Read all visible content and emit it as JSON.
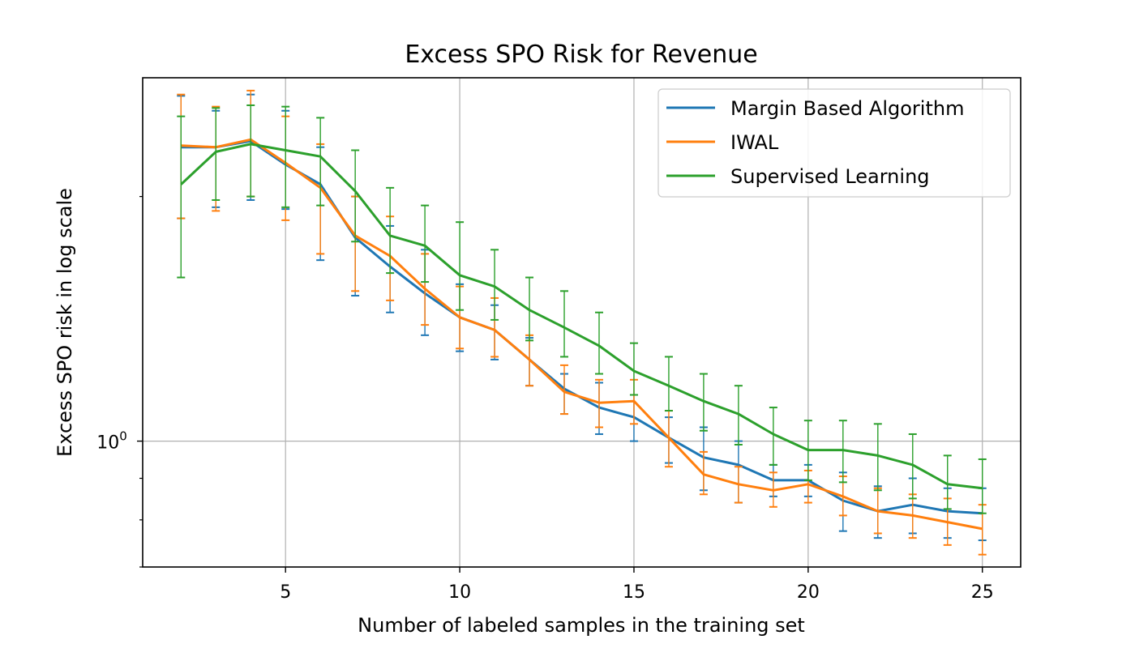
{
  "chart_data": {
    "type": "line",
    "title": "Excess SPO Risk for Revenue",
    "xlabel": "Number of labeled samples in the training set",
    "ylabel": "Excess SPO risk in log scale",
    "yscale": "log",
    "xlim": [
      0.9,
      26.1
    ],
    "ylim": [
      0.7,
      2.8
    ],
    "xticks": [
      5,
      10,
      15,
      20,
      25
    ],
    "xtick_labels": [
      "5",
      "10",
      "15",
      "20",
      "25"
    ],
    "ytick_major": [
      1.0
    ],
    "ytick_labels": [
      "10",
      "0"
    ],
    "ytick_minor": [
      0.7,
      0.8,
      0.9,
      2.0
    ],
    "grid": true,
    "legend_position": "top-right",
    "x": [
      2,
      3,
      4,
      5,
      6,
      7,
      8,
      9,
      10,
      11,
      12,
      13,
      14,
      15,
      16,
      17,
      18,
      19,
      20,
      21,
      22,
      23,
      24,
      25
    ],
    "series": [
      {
        "name": "Margin Based Algorithm",
        "color": "#1f77b4",
        "values": [
          2.3,
          2.3,
          2.34,
          2.19,
          2.07,
          1.78,
          1.64,
          1.52,
          1.42,
          1.37,
          1.26,
          1.16,
          1.1,
          1.07,
          1.01,
          0.955,
          0.935,
          0.895,
          0.895,
          0.845,
          0.82,
          0.835,
          0.82,
          0.815
        ],
        "err_low": [
          1.88,
          1.94,
          1.98,
          1.93,
          1.67,
          1.51,
          1.44,
          1.35,
          1.29,
          1.26,
          1.17,
          1.08,
          1.02,
          1.0,
          0.94,
          0.87,
          0.84,
          0.855,
          0.855,
          0.775,
          0.76,
          0.77,
          0.76,
          0.755
        ],
        "err_high": [
          2.66,
          2.55,
          2.67,
          2.55,
          2.3,
          2.0,
          1.84,
          1.72,
          1.56,
          1.47,
          1.34,
          1.21,
          1.18,
          1.14,
          1.07,
          1.04,
          1.0,
          0.935,
          0.935,
          0.915,
          0.88,
          0.9,
          0.875,
          0.875
        ]
      },
      {
        "name": "IWAL",
        "color": "#ff7f0e",
        "values": [
          2.31,
          2.3,
          2.35,
          2.2,
          2.05,
          1.79,
          1.69,
          1.54,
          1.42,
          1.37,
          1.26,
          1.15,
          1.115,
          1.12,
          1.01,
          0.91,
          0.885,
          0.87,
          0.885,
          0.855,
          0.82,
          0.81,
          0.795,
          0.78
        ],
        "err_low": [
          1.88,
          1.92,
          2.0,
          1.87,
          1.7,
          1.53,
          1.49,
          1.39,
          1.3,
          1.27,
          1.17,
          1.08,
          1.04,
          1.05,
          0.93,
          0.86,
          0.84,
          0.83,
          0.84,
          0.81,
          0.77,
          0.76,
          0.745,
          0.725
        ],
        "err_high": [
          2.67,
          2.58,
          2.7,
          2.51,
          2.32,
          2.0,
          1.89,
          1.7,
          1.55,
          1.5,
          1.35,
          1.24,
          1.19,
          1.19,
          1.09,
          0.97,
          0.93,
          0.915,
          0.92,
          0.905,
          0.875,
          0.86,
          0.85,
          0.835
        ]
      },
      {
        "name": "Supervised Learning",
        "color": "#2ca02c",
        "values": [
          2.07,
          2.27,
          2.32,
          2.28,
          2.24,
          2.03,
          1.79,
          1.74,
          1.6,
          1.55,
          1.45,
          1.38,
          1.31,
          1.22,
          1.17,
          1.12,
          1.08,
          1.02,
          0.975,
          0.975,
          0.96,
          0.935,
          0.885,
          0.875
        ],
        "err_low": [
          1.59,
          1.98,
          2.0,
          1.94,
          1.95,
          1.76,
          1.61,
          1.57,
          1.45,
          1.41,
          1.33,
          1.27,
          1.21,
          1.14,
          1.09,
          1.03,
          0.99,
          0.935,
          0.895,
          0.89,
          0.87,
          0.85,
          0.825,
          0.815
        ],
        "err_high": [
          2.51,
          2.57,
          2.59,
          2.58,
          2.5,
          2.28,
          2.05,
          1.95,
          1.86,
          1.72,
          1.59,
          1.53,
          1.44,
          1.32,
          1.27,
          1.21,
          1.17,
          1.1,
          1.06,
          1.06,
          1.05,
          1.02,
          0.96,
          0.95
        ]
      }
    ]
  }
}
